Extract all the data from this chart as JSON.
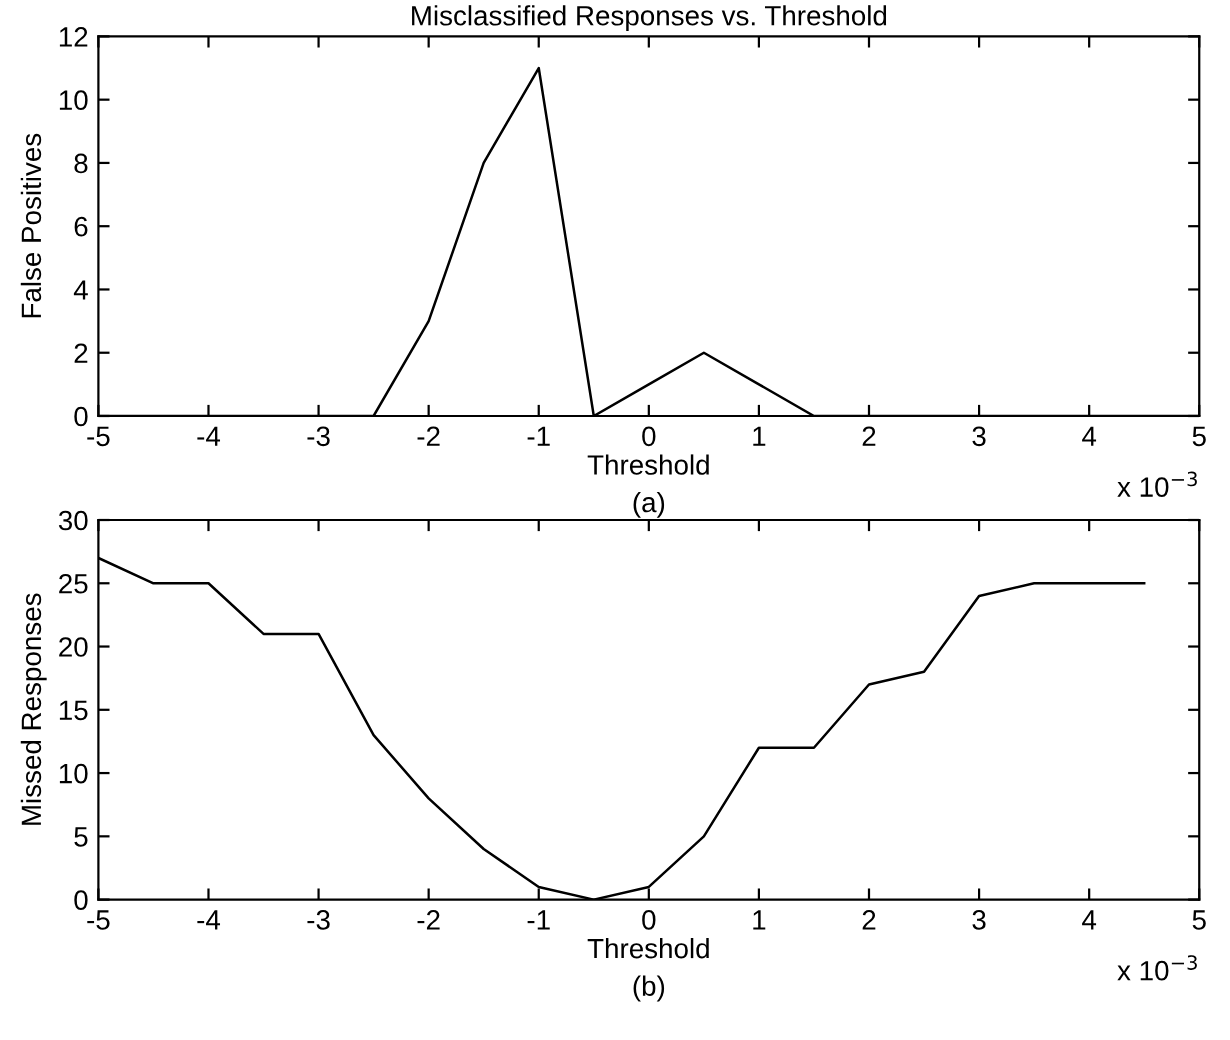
{
  "chart_data": [
    {
      "type": "line",
      "title": "Misclassified Responses vs. Threshold",
      "xlabel": "Threshold",
      "ylabel": "False Positives",
      "annotations": [
        "x 10$^{−3}$",
        "(a)"
      ],
      "x": [
        -5,
        -4.5,
        -4,
        -3.5,
        -3,
        -2.5,
        -2,
        -1.5,
        -1,
        -0.5,
        0,
        0.5,
        1,
        1.5,
        2,
        2.5,
        3,
        3.5,
        4,
        4.5,
        5
      ],
      "series": [
        {
          "color": "#000000",
          "values": [
            0,
            0,
            0,
            0,
            0,
            0,
            3,
            8,
            11,
            0,
            1,
            2,
            1,
            0,
            0,
            0,
            0,
            0,
            0,
            0,
            0
          ]
        }
      ],
      "xlim": [
        -5,
        5
      ],
      "xticks": [
        -5,
        -4,
        -3,
        -2,
        -1,
        0,
        1,
        2,
        3,
        4,
        5
      ],
      "ylim": [
        0,
        12
      ],
      "yticks": [
        0,
        2,
        4,
        6,
        8,
        10,
        12
      ],
      "grid": false,
      "legend": false
    },
    {
      "type": "line",
      "xlabel": "Threshold",
      "ylabel": "Missed Responses",
      "annotations": [
        "x 10$^{−3}$",
        "(b)"
      ],
      "x": [
        -5,
        -4.5,
        -4,
        -3.5,
        -3,
        -2.5,
        -2,
        -1.5,
        -1,
        -0.5,
        0,
        0.5,
        1,
        1.5,
        2,
        2.5,
        3,
        3.5,
        4,
        4.5
      ],
      "series": [
        {
          "color": "#000000",
          "values": [
            27,
            25,
            25,
            21,
            21,
            13,
            8,
            4,
            1,
            0,
            1,
            5,
            12,
            12,
            17,
            18,
            24,
            25,
            25,
            25
          ]
        }
      ],
      "xlim": [
        -5,
        5
      ],
      "xticks": [
        -5,
        -4,
        -3,
        -2,
        -1,
        0,
        1,
        2,
        3,
        4,
        5
      ],
      "ylim": [
        0,
        30
      ],
      "yticks": [
        0,
        5,
        10,
        15,
        20,
        25,
        30
      ],
      "grid": false,
      "legend": false
    }
  ]
}
